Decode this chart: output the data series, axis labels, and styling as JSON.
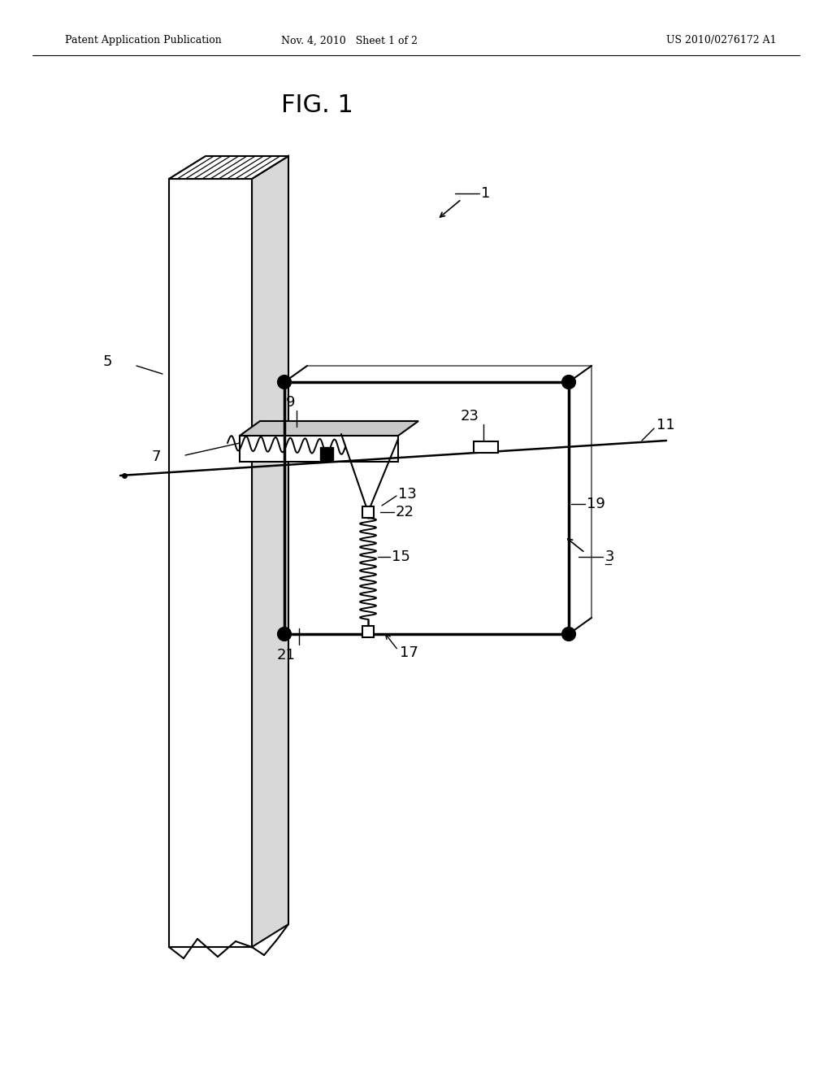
{
  "bg_color": "#ffffff",
  "line_color": "#000000",
  "header_left": "Patent Application Publication",
  "header_mid": "Nov. 4, 2010   Sheet 1 of 2",
  "header_right": "US 2010/0276172 A1",
  "fig_label": "FIG. 1"
}
